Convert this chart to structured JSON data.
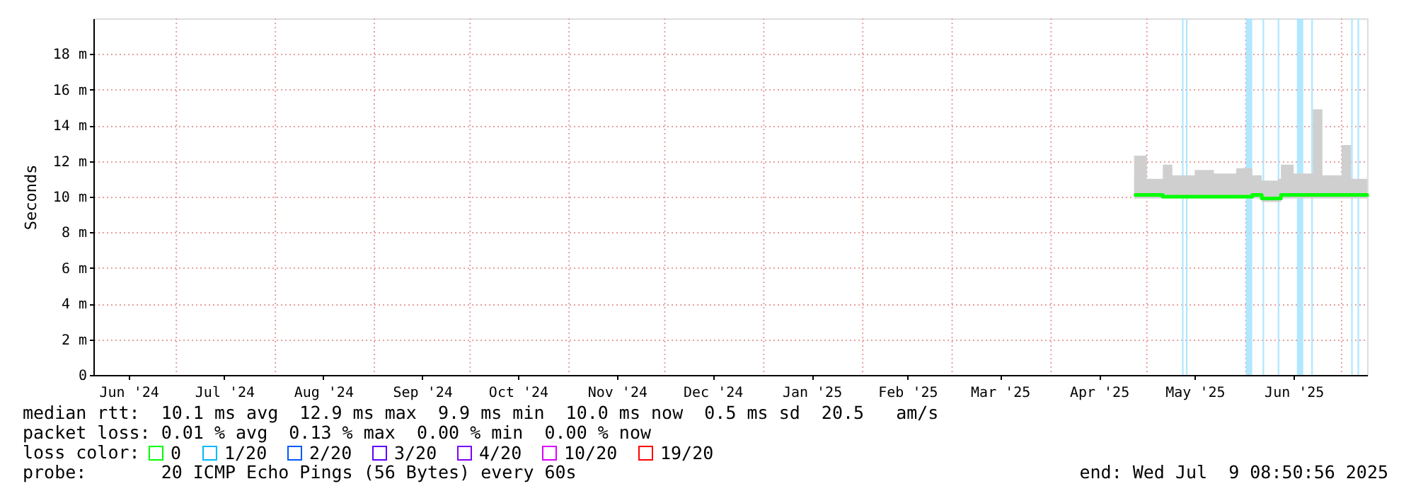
{
  "chart_data": {
    "type": "line",
    "ylabel": "Seconds",
    "legend_title": "loss color:",
    "legend": "bottom",
    "xlim": [
      "2024-06-05",
      "2025-07-09"
    ],
    "xticks": [
      {
        "value": "2024-06-16",
        "label": "Jun '24"
      },
      {
        "value": "2024-07-16",
        "label": "Jul '24"
      },
      {
        "value": "2024-08-16",
        "label": "Aug '24"
      },
      {
        "value": "2024-09-16",
        "label": "Sep '24"
      },
      {
        "value": "2024-10-16",
        "label": "Oct '24"
      },
      {
        "value": "2024-11-16",
        "label": "Nov '24"
      },
      {
        "value": "2024-12-16",
        "label": "Dec '24"
      },
      {
        "value": "2025-01-16",
        "label": "Jan '25"
      },
      {
        "value": "2025-02-15",
        "label": "Feb '25"
      },
      {
        "value": "2025-03-16",
        "label": "Mar '25"
      },
      {
        "value": "2025-04-16",
        "label": "Apr '25"
      },
      {
        "value": "2025-05-16",
        "label": "May '25"
      },
      {
        "value": "2025-06-16",
        "label": "Jun '25"
      },
      {
        "value": "2024-07-01",
        "label": null
      },
      {
        "value": "2024-08-01",
        "label": null
      },
      {
        "value": "2024-09-01",
        "label": null
      },
      {
        "value": "2024-10-01",
        "label": null
      },
      {
        "value": "2024-11-01",
        "label": null
      },
      {
        "value": "2024-12-01",
        "label": null
      },
      {
        "value": "2025-01-01",
        "label": null
      },
      {
        "value": "2025-02-01",
        "label": null
      },
      {
        "value": "2025-03-01",
        "label": null
      },
      {
        "value": "2025-04-01",
        "label": null
      },
      {
        "value": "2025-05-01",
        "label": null
      },
      {
        "value": "2025-06-01",
        "label": null
      },
      {
        "value": "2025-07-01",
        "label": null
      }
    ],
    "ylim": [
      0,
      20
    ],
    "yticks": [
      0,
      {
        "value": 2,
        "label": "2 m"
      },
      {
        "value": 4,
        "label": "4 m"
      },
      {
        "value": 6,
        "label": "6 m"
      },
      {
        "value": 8,
        "label": "8 m"
      },
      {
        "value": 10,
        "label": "10 m"
      },
      {
        "value": 12,
        "label": "12 m"
      },
      {
        "value": 14,
        "label": "14 m"
      },
      {
        "value": 16,
        "label": "16 m"
      },
      {
        "value": 18,
        "label": "18 m"
      }
    ],
    "grid": true,
    "series": [
      {
        "name": "0",
        "color": "#00ff00",
        "x": [
          "2025-04-27",
          "2025-05-01",
          "2025-05-06",
          "2025-05-09",
          "2025-05-16",
          "2025-05-22",
          "2025-05-29",
          "2025-06-03",
          "2025-06-06",
          "2025-06-11",
          "2025-06-12",
          "2025-06-16",
          "2025-06-22",
          "2025-06-25",
          "2025-07-01",
          "2025-07-04",
          "2025-07-09"
        ],
        "values": [
          10.1,
          10.1,
          10.0,
          10.0,
          10.0,
          10.0,
          10.0,
          10.1,
          9.9,
          9.9,
          10.1,
          10.1,
          10.1,
          10.1,
          10.1,
          10.1,
          10.0
        ],
        "lower": [
          9.9,
          9.9,
          9.9,
          9.9,
          9.9,
          9.9,
          9.9,
          9.9,
          9.7,
          9.7,
          9.9,
          9.9,
          9.9,
          9.9,
          9.9,
          9.9,
          9.9
        ],
        "upper": [
          12.3,
          11.0,
          11.8,
          11.2,
          11.5,
          11.3,
          11.6,
          11.2,
          10.9,
          11.0,
          11.8,
          11.3,
          14.9,
          11.2,
          12.9,
          11.0,
          10.9
        ]
      },
      {
        "name": "1/20",
        "color": "#00b8ff"
      },
      {
        "name": "2/20",
        "color": "#0059ff"
      },
      {
        "name": "3/20",
        "color": "#5e00ff"
      },
      {
        "name": "4/20",
        "color": "#7e00ff"
      },
      {
        "name": "10/20",
        "color": "#dd00ff"
      },
      {
        "name": "19/20",
        "color": "#ff0000"
      }
    ],
    "bands": [
      {
        "axis": "x",
        "from": "2025-05-12",
        "to": "2025-05-12T12:00",
        "label": null,
        "color": "#a8e4ff"
      },
      {
        "axis": "x",
        "from": "2025-05-13T06:00",
        "to": "2025-05-13T18:00",
        "label": null,
        "color": "#a8e4ff"
      },
      {
        "axis": "x",
        "from": "2025-06-01",
        "to": "2025-06-03",
        "label": null,
        "color": "#a8e4ff"
      },
      {
        "axis": "x",
        "from": "2025-06-06T06:00",
        "to": "2025-06-06T18:00",
        "label": null,
        "color": "#a8e4ff"
      },
      {
        "axis": "x",
        "from": "2025-06-11",
        "to": "2025-06-11T12:00",
        "label": null,
        "color": "#a8e4ff"
      },
      {
        "axis": "x",
        "from": "2025-06-17",
        "to": "2025-06-19",
        "label": null,
        "color": "#a8e4ff"
      },
      {
        "axis": "x",
        "from": "2025-06-21T12:00",
        "to": "2025-06-22",
        "label": null,
        "color": "#a8e4ff"
      },
      {
        "axis": "x",
        "from": "2025-07-04",
        "to": "2025-07-04T12:00",
        "label": null,
        "color": "#a8e4ff"
      },
      {
        "axis": "x",
        "from": "2025-07-06",
        "to": "2025-07-06T12:00",
        "label": null,
        "color": "#a8e4ff"
      }
    ],
    "annotations": [
      "median rtt:  10.1 ms avg  12.9 ms max  9.9 ms min  10.0 ms now  0.5 ms sd  20.5   am/s",
      "packet loss: 0.01 % avg  0.13 % max  0.00 % min  0.00 % now",
      "probe:       20 ICMP Echo Pings (56 Bytes) every 60s",
      "end: Wed Jul  9 08:50:56 2025"
    ]
  }
}
